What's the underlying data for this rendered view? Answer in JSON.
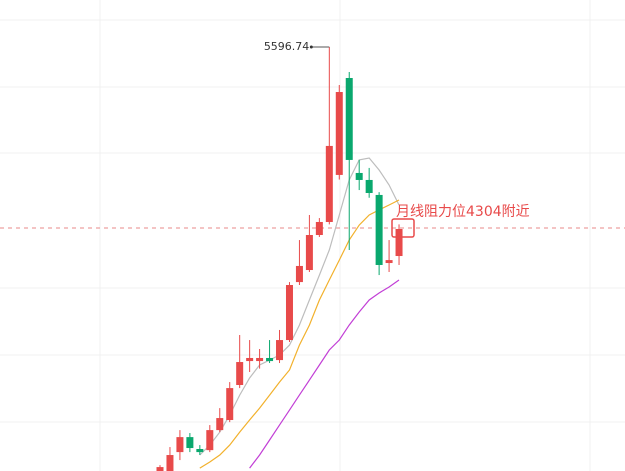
{
  "chart_data": {
    "type": "candlestick",
    "up_color": "#e84a4a",
    "down_color": "#0aa86e",
    "ylim": [
      2569,
      5932
    ],
    "candles": {
      "open": [
        2569,
        2569,
        2704,
        2811,
        2726,
        2718,
        2861,
        2933,
        3183,
        3354,
        3354,
        3376,
        3361,
        3504,
        3918,
        4004,
        4254,
        4347,
        4683,
        5375,
        4697,
        4647,
        4540,
        4054,
        4104
      ],
      "high": [
        2611,
        2740,
        2861,
        2840,
        2754,
        2897,
        3018,
        3204,
        3540,
        3504,
        3440,
        3504,
        3576,
        3918,
        4218,
        4397,
        4375,
        5596.74,
        5325,
        5418,
        4790,
        4733,
        4560,
        4218,
        4330
      ],
      "low": [
        2569,
        2569,
        2647,
        2704,
        2683,
        2704,
        2847,
        2918,
        3161,
        3276,
        3300,
        3340,
        3340,
        3490,
        3897,
        3990,
        4240,
        4330,
        4650,
        4147,
        4575,
        4520,
        3968,
        3990,
        4040
      ],
      "close": [
        2597,
        2683,
        2811,
        2733,
        2704,
        2861,
        2947,
        3161,
        3347,
        3376,
        3376,
        3354,
        3504,
        3897,
        4033,
        4254,
        4347,
        4890,
        5275,
        4790,
        4647,
        4554,
        4040,
        4075,
        4297
      ]
    },
    "lines": [
      {
        "color": "#bdbdbd",
        "values": [
          null,
          null,
          null,
          null,
          2683,
          2754,
          2847,
          2968,
          3111,
          3233,
          3326,
          3361,
          3397,
          3468,
          3611,
          3790,
          3968,
          4147,
          4397,
          4647,
          4790,
          4804,
          4718,
          4611,
          4468
        ]
      },
      {
        "color": "#f2b12c",
        "values": [
          null,
          null,
          null,
          null,
          2590,
          2633,
          2683,
          2754,
          2847,
          2933,
          3018,
          3111,
          3204,
          3290,
          3468,
          3611,
          3790,
          3933,
          4075,
          4218,
          4325,
          4397,
          4433,
          4468,
          4504
        ]
      },
      {
        "color": "#c23fd6",
        "values": [
          null,
          null,
          null,
          null,
          null,
          null,
          null,
          null,
          null,
          2590,
          2683,
          2790,
          2897,
          3004,
          3111,
          3218,
          3326,
          3433,
          3504,
          3611,
          3704,
          3790,
          3840,
          3883,
          3933
        ]
      }
    ],
    "annotations": [
      {
        "text": "月线阻力位4304附近",
        "color": "#e84a4a"
      }
    ]
  }
}
